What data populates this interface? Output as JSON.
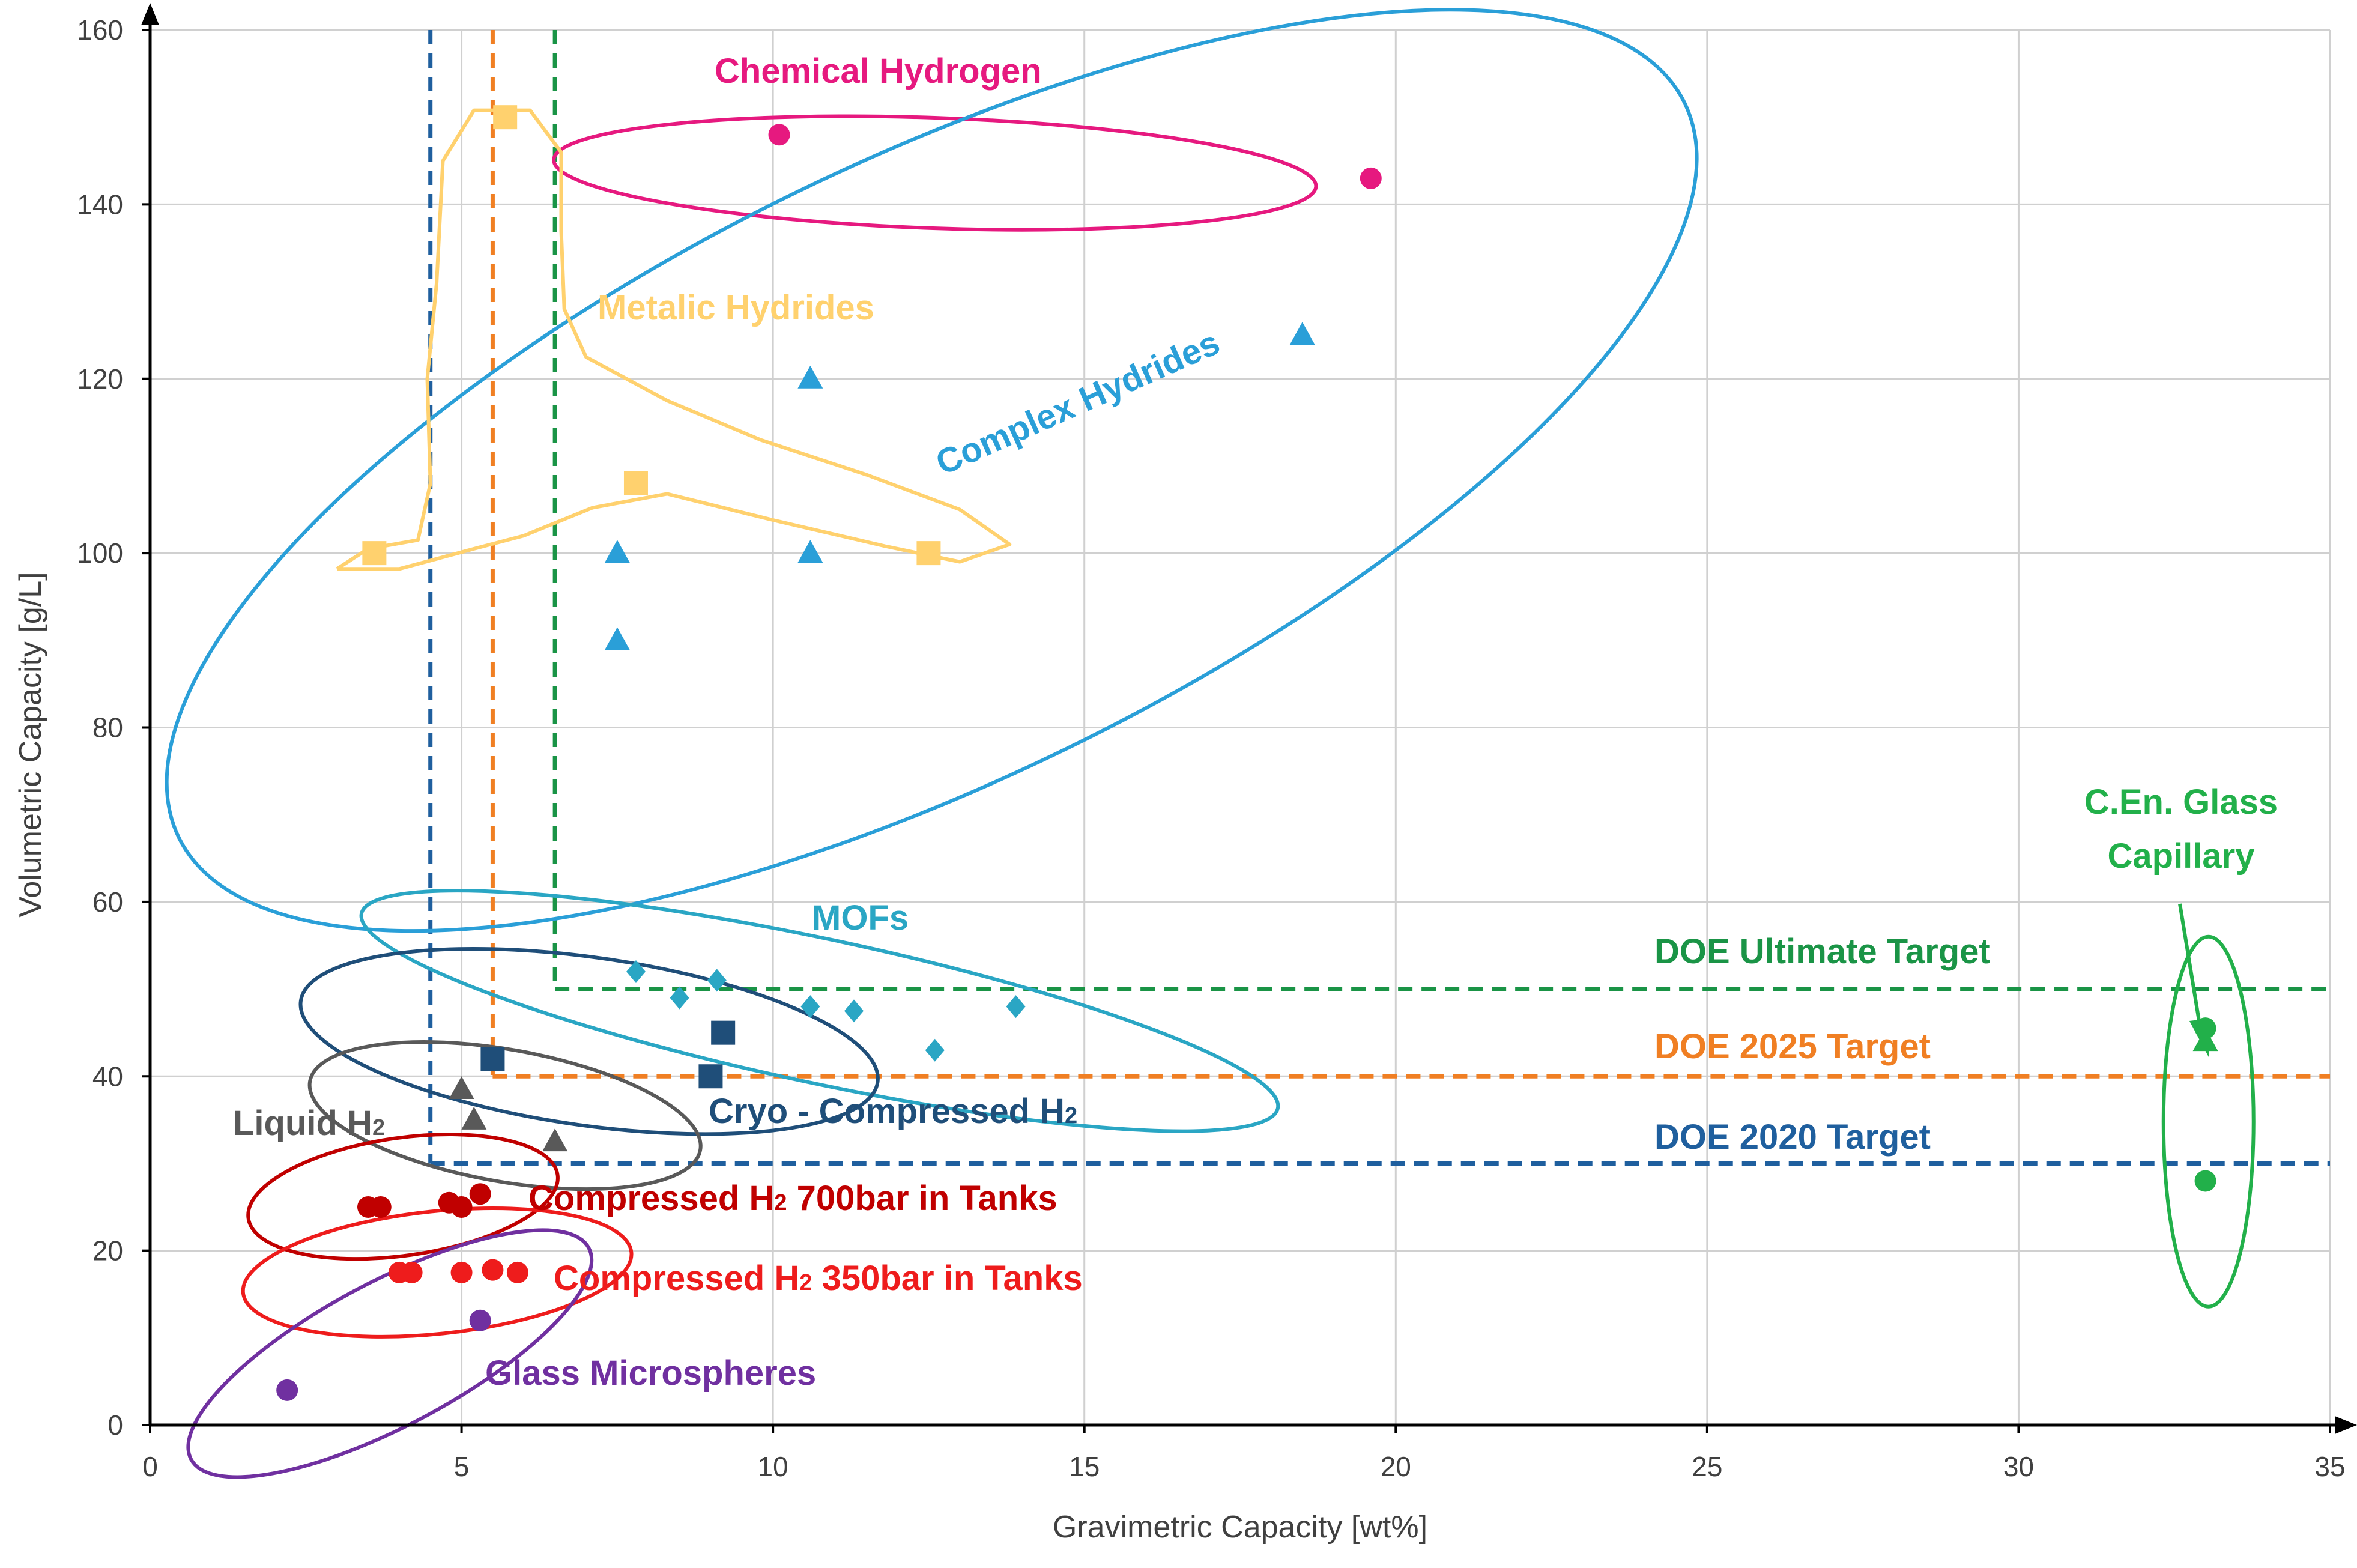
{
  "chart_data": {
    "type": "scatter",
    "title": "",
    "xlabel": "Gravimetric Capacity [wt%]",
    "ylabel": "Volumetric Capacity [g/L]",
    "xlim": [
      0,
      35
    ],
    "ylim": [
      0,
      160
    ],
    "xticks": [
      0,
      5,
      10,
      15,
      20,
      25,
      30,
      35
    ],
    "yticks": [
      0,
      20,
      40,
      60,
      80,
      100,
      120,
      140,
      160
    ],
    "grid": true,
    "legend": "none",
    "series": [
      {
        "name": "Chemical Hydrogen",
        "label": "Chemical Hydrogen",
        "color": "#e6197f",
        "marker": "circle",
        "points": [
          [
            10.1,
            148
          ],
          [
            19.6,
            143
          ]
        ]
      },
      {
        "name": "Metalic Hydrides",
        "label": "Metalic Hydrides",
        "color": "#ffd16e",
        "marker": "square",
        "points": [
          [
            3.6,
            100
          ],
          [
            5.7,
            150
          ],
          [
            7.8,
            108
          ],
          [
            12.5,
            100
          ]
        ]
      },
      {
        "name": "Complex Hydrides",
        "label": "Complex Hydrides",
        "color": "#2a9fd8",
        "marker": "triangle",
        "points": [
          [
            7.5,
            90
          ],
          [
            7.5,
            100
          ],
          [
            10.6,
            100
          ],
          [
            10.6,
            120
          ],
          [
            18.5,
            125
          ]
        ]
      },
      {
        "name": "MOFs",
        "label": "MOFs",
        "color": "#2aa6c4",
        "marker": "diamond",
        "points": [
          [
            7.8,
            52
          ],
          [
            8.5,
            49
          ],
          [
            9.1,
            51
          ],
          [
            10.6,
            48
          ],
          [
            11.3,
            47.5
          ],
          [
            12.6,
            43
          ],
          [
            13.9,
            48
          ]
        ]
      },
      {
        "name": "Cryo - Compressed H2",
        "label": "Cryo - Compressed H",
        "sub": "2",
        "color": "#1f4e79",
        "marker": "square",
        "points": [
          [
            5.5,
            42
          ],
          [
            9.0,
            40
          ],
          [
            9.2,
            45
          ]
        ]
      },
      {
        "name": "Liquid H2",
        "label": "Liquid H",
        "sub": "2",
        "color": "#595959",
        "marker": "triangle",
        "points": [
          [
            5.0,
            38.5
          ],
          [
            5.2,
            35
          ],
          [
            6.5,
            32.5
          ]
        ]
      },
      {
        "name": "Compressed H2 700bar in Tanks",
        "label": "Compressed H",
        "sub": "2",
        "label_after": " 700bar in Tanks",
        "color": "#c00000",
        "marker": "circle",
        "points": [
          [
            3.5,
            25
          ],
          [
            3.7,
            25
          ],
          [
            4.8,
            25.5
          ],
          [
            5.0,
            25
          ],
          [
            5.3,
            26.5
          ]
        ]
      },
      {
        "name": "Compressed H2 350bar in Tanks",
        "label": "Compressed H",
        "sub": "2",
        "label_after": " 350bar in Tanks",
        "color": "#ee1c1c",
        "marker": "circle",
        "points": [
          [
            4.0,
            17.5
          ],
          [
            4.2,
            17.5
          ],
          [
            5.0,
            17.5
          ],
          [
            5.5,
            17.8
          ],
          [
            5.9,
            17.5
          ]
        ]
      },
      {
        "name": "Glass Microspheres",
        "label": "Glass Microspheres",
        "color": "#7030a0",
        "marker": "circle",
        "points": [
          [
            2.2,
            4
          ],
          [
            5.3,
            12
          ]
        ]
      },
      {
        "name": "C.En. Glass Capillary",
        "label_lines": [
          "C.En. Glass",
          "Capillary"
        ],
        "color": "#22b04a",
        "marker": "circle",
        "points": [
          [
            33.0,
            28
          ],
          [
            33.0,
            44
          ]
        ]
      }
    ],
    "targets": [
      {
        "name": "DOE 2020 Target",
        "label": "DOE 2020 Target",
        "color": "#1f5f9e",
        "x": 4.5,
        "y": 30
      },
      {
        "name": "DOE 2025 Target",
        "label": "DOE 2025 Target",
        "color": "#f07f23",
        "x": 5.5,
        "y": 40
      },
      {
        "name": "DOE Ultimate Target",
        "label": "DOE Ultimate Target",
        "color": "#1a9446",
        "x": 6.5,
        "y": 50
      }
    ]
  }
}
